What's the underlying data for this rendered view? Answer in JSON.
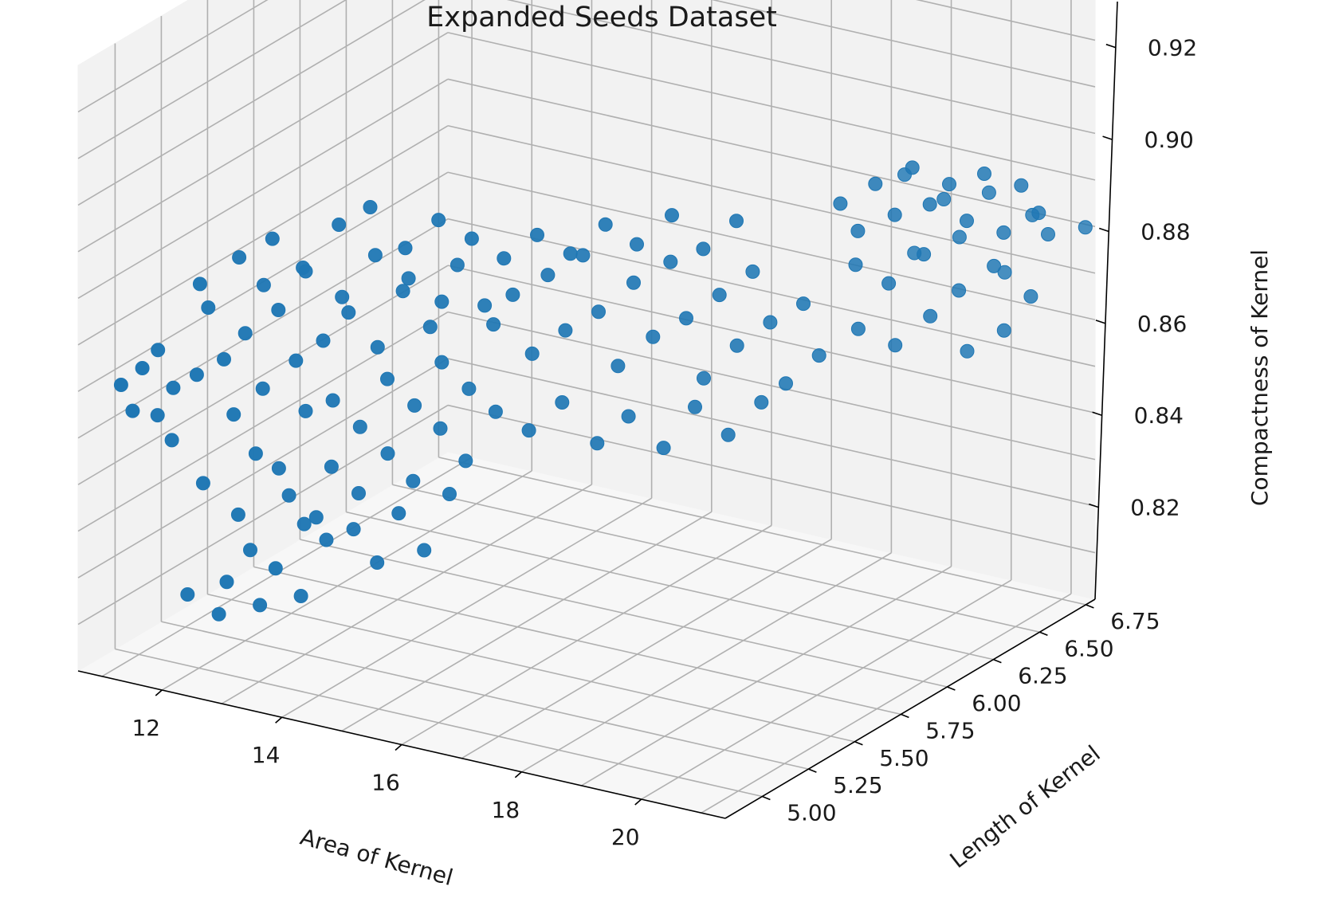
{
  "chart_data": {
    "type": "scatter",
    "title": "Expanded Seeds Dataset",
    "xlabel": "Area of Kernel",
    "ylabel": "Length of Kernel",
    "zlabel": "Compactness of Kernel",
    "x_ticks": [
      "12",
      "14",
      "16",
      "18",
      "20"
    ],
    "y_ticks": [
      "5.00",
      "5.25",
      "5.50",
      "5.75",
      "6.00",
      "6.25",
      "6.50",
      "6.75"
    ],
    "z_ticks": [
      "0.82",
      "0.84",
      "0.86",
      "0.88",
      "0.90",
      "0.92"
    ],
    "xlim": [
      10.6,
      21.4
    ],
    "ylim": [
      4.8,
      6.8
    ],
    "zlim": [
      0.8,
      0.93
    ],
    "grid": true,
    "marker_color": "#1f77b4",
    "points": [
      [
        10.7,
        5.0,
        0.857
      ],
      [
        10.8,
        5.03,
        0.851
      ],
      [
        10.9,
        5.05,
        0.86
      ],
      [
        11.0,
        5.1,
        0.849
      ],
      [
        11.1,
        5.07,
        0.864
      ],
      [
        11.2,
        5.12,
        0.855
      ],
      [
        11.3,
        5.08,
        0.845
      ],
      [
        11.5,
        5.15,
        0.858
      ],
      [
        11.6,
        5.18,
        0.872
      ],
      [
        11.7,
        5.12,
        0.836
      ],
      [
        11.8,
        5.2,
        0.861
      ],
      [
        11.9,
        5.22,
        0.849
      ],
      [
        12.0,
        5.25,
        0.866
      ],
      [
        12.1,
        5.18,
        0.829
      ],
      [
        12.2,
        5.28,
        0.854
      ],
      [
        12.3,
        5.21,
        0.842
      ],
      [
        12.4,
        5.3,
        0.871
      ],
      [
        12.5,
        5.27,
        0.838
      ],
      [
        12.6,
        5.33,
        0.86
      ],
      [
        12.7,
        5.35,
        0.849
      ],
      [
        12.8,
        5.31,
        0.826
      ],
      [
        12.9,
        5.38,
        0.864
      ],
      [
        13.0,
        5.4,
        0.851
      ],
      [
        13.1,
        5.36,
        0.838
      ],
      [
        13.2,
        5.42,
        0.87
      ],
      [
        13.3,
        5.45,
        0.845
      ],
      [
        13.4,
        5.41,
        0.832
      ],
      [
        13.5,
        5.48,
        0.862
      ],
      [
        13.6,
        5.5,
        0.855
      ],
      [
        13.7,
        5.47,
        0.84
      ],
      [
        13.8,
        5.52,
        0.874
      ],
      [
        13.9,
        5.55,
        0.849
      ],
      [
        14.0,
        5.51,
        0.834
      ],
      [
        14.1,
        5.57,
        0.866
      ],
      [
        14.2,
        5.6,
        0.858
      ],
      [
        14.3,
        5.56,
        0.845
      ],
      [
        14.4,
        5.62,
        0.879
      ],
      [
        14.5,
        5.65,
        0.852
      ],
      [
        14.6,
        5.6,
        0.838
      ],
      [
        14.7,
        5.67,
        0.87
      ],
      [
        12.0,
        5.15,
        0.815
      ],
      [
        12.3,
        5.18,
        0.822
      ],
      [
        12.6,
        5.22,
        0.818
      ],
      [
        12.9,
        5.26,
        0.812
      ],
      [
        13.2,
        5.3,
        0.824
      ],
      [
        11.5,
        5.1,
        0.812
      ],
      [
        11.9,
        5.14,
        0.808
      ],
      [
        12.4,
        5.2,
        0.81
      ],
      [
        13.5,
        5.35,
        0.826
      ],
      [
        13.8,
        5.38,
        0.819
      ],
      [
        14.1,
        5.4,
        0.83
      ],
      [
        14.4,
        5.44,
        0.822
      ],
      [
        14.7,
        5.48,
        0.834
      ],
      [
        12.7,
        5.26,
        0.833
      ],
      [
        13.0,
        5.31,
        0.828
      ],
      [
        11.4,
        5.2,
        0.876
      ],
      [
        11.9,
        5.25,
        0.882
      ],
      [
        12.3,
        5.3,
        0.886
      ],
      [
        12.7,
        5.35,
        0.879
      ],
      [
        13.1,
        5.4,
        0.889
      ],
      [
        13.5,
        5.44,
        0.893
      ],
      [
        13.9,
        5.5,
        0.884
      ],
      [
        14.3,
        5.55,
        0.89
      ],
      [
        14.7,
        5.6,
        0.886
      ],
      [
        12.0,
        5.35,
        0.874
      ],
      [
        12.5,
        5.4,
        0.878
      ],
      [
        13.0,
        5.45,
        0.872
      ],
      [
        13.4,
        5.5,
        0.881
      ],
      [
        13.8,
        5.55,
        0.876
      ],
      [
        14.2,
        5.6,
        0.871
      ],
      [
        15.0,
        5.62,
        0.868
      ],
      [
        15.2,
        5.66,
        0.874
      ],
      [
        15.4,
        5.7,
        0.861
      ],
      [
        15.6,
        5.72,
        0.878
      ],
      [
        15.8,
        5.75,
        0.866
      ],
      [
        16.0,
        5.78,
        0.882
      ],
      [
        16.2,
        5.8,
        0.87
      ],
      [
        16.4,
        5.84,
        0.858
      ],
      [
        16.6,
        5.86,
        0.876
      ],
      [
        16.8,
        5.9,
        0.864
      ],
      [
        17.0,
        5.93,
        0.88
      ],
      [
        17.2,
        5.95,
        0.868
      ],
      [
        17.4,
        5.98,
        0.855
      ],
      [
        17.6,
        6.0,
        0.873
      ],
      [
        17.8,
        6.03,
        0.862
      ],
      [
        18.0,
        6.05,
        0.878
      ],
      [
        18.2,
        6.08,
        0.867
      ],
      [
        18.4,
        6.1,
        0.854
      ],
      [
        18.6,
        6.13,
        0.871
      ],
      [
        18.8,
        6.15,
        0.86
      ],
      [
        15.1,
        5.6,
        0.85
      ],
      [
        15.5,
        5.65,
        0.846
      ],
      [
        15.9,
        5.7,
        0.852
      ],
      [
        16.3,
        5.76,
        0.843
      ],
      [
        16.7,
        5.8,
        0.849
      ],
      [
        17.1,
        5.86,
        0.842
      ],
      [
        17.5,
        5.9,
        0.851
      ],
      [
        17.9,
        5.95,
        0.845
      ],
      [
        18.3,
        6.0,
        0.852
      ],
      [
        15.3,
        5.58,
        0.884
      ],
      [
        15.7,
        5.63,
        0.889
      ],
      [
        16.1,
        5.68,
        0.885
      ],
      [
        16.5,
        5.74,
        0.891
      ],
      [
        16.9,
        5.78,
        0.887
      ],
      [
        17.3,
        5.84,
        0.893
      ],
      [
        17.7,
        5.88,
        0.886
      ],
      [
        18.1,
        5.93,
        0.892
      ],
      [
        19.0,
        6.2,
        0.892
      ],
      [
        19.2,
        6.23,
        0.886
      ],
      [
        19.4,
        6.26,
        0.896
      ],
      [
        19.6,
        6.3,
        0.889
      ],
      [
        19.8,
        6.33,
        0.899
      ],
      [
        20.0,
        6.36,
        0.891
      ],
      [
        20.2,
        6.4,
        0.895
      ],
      [
        20.4,
        6.43,
        0.887
      ],
      [
        20.6,
        6.46,
        0.897
      ],
      [
        20.8,
        6.5,
        0.884
      ],
      [
        21.0,
        6.53,
        0.894
      ],
      [
        21.2,
        6.56,
        0.888
      ],
      [
        19.1,
        6.25,
        0.878
      ],
      [
        19.5,
        6.3,
        0.874
      ],
      [
        19.9,
        6.36,
        0.88
      ],
      [
        20.3,
        6.42,
        0.872
      ],
      [
        20.7,
        6.48,
        0.877
      ],
      [
        21.1,
        6.55,
        0.87
      ],
      [
        19.3,
        6.2,
        0.866
      ],
      [
        19.7,
        6.27,
        0.862
      ],
      [
        20.1,
        6.33,
        0.868
      ],
      [
        20.5,
        6.4,
        0.86
      ],
      [
        20.9,
        6.47,
        0.864
      ],
      [
        19.0,
        6.6,
        0.872
      ],
      [
        19.6,
        6.65,
        0.876
      ],
      [
        20.2,
        6.7,
        0.869
      ],
      [
        20.8,
        6.74,
        0.878
      ],
      [
        21.3,
        6.78,
        0.88
      ],
      [
        18.9,
        6.58,
        0.889
      ],
      [
        19.4,
        6.63,
        0.884
      ],
      [
        20.0,
        6.68,
        0.886
      ],
      [
        20.6,
        6.72,
        0.882
      ]
    ]
  }
}
